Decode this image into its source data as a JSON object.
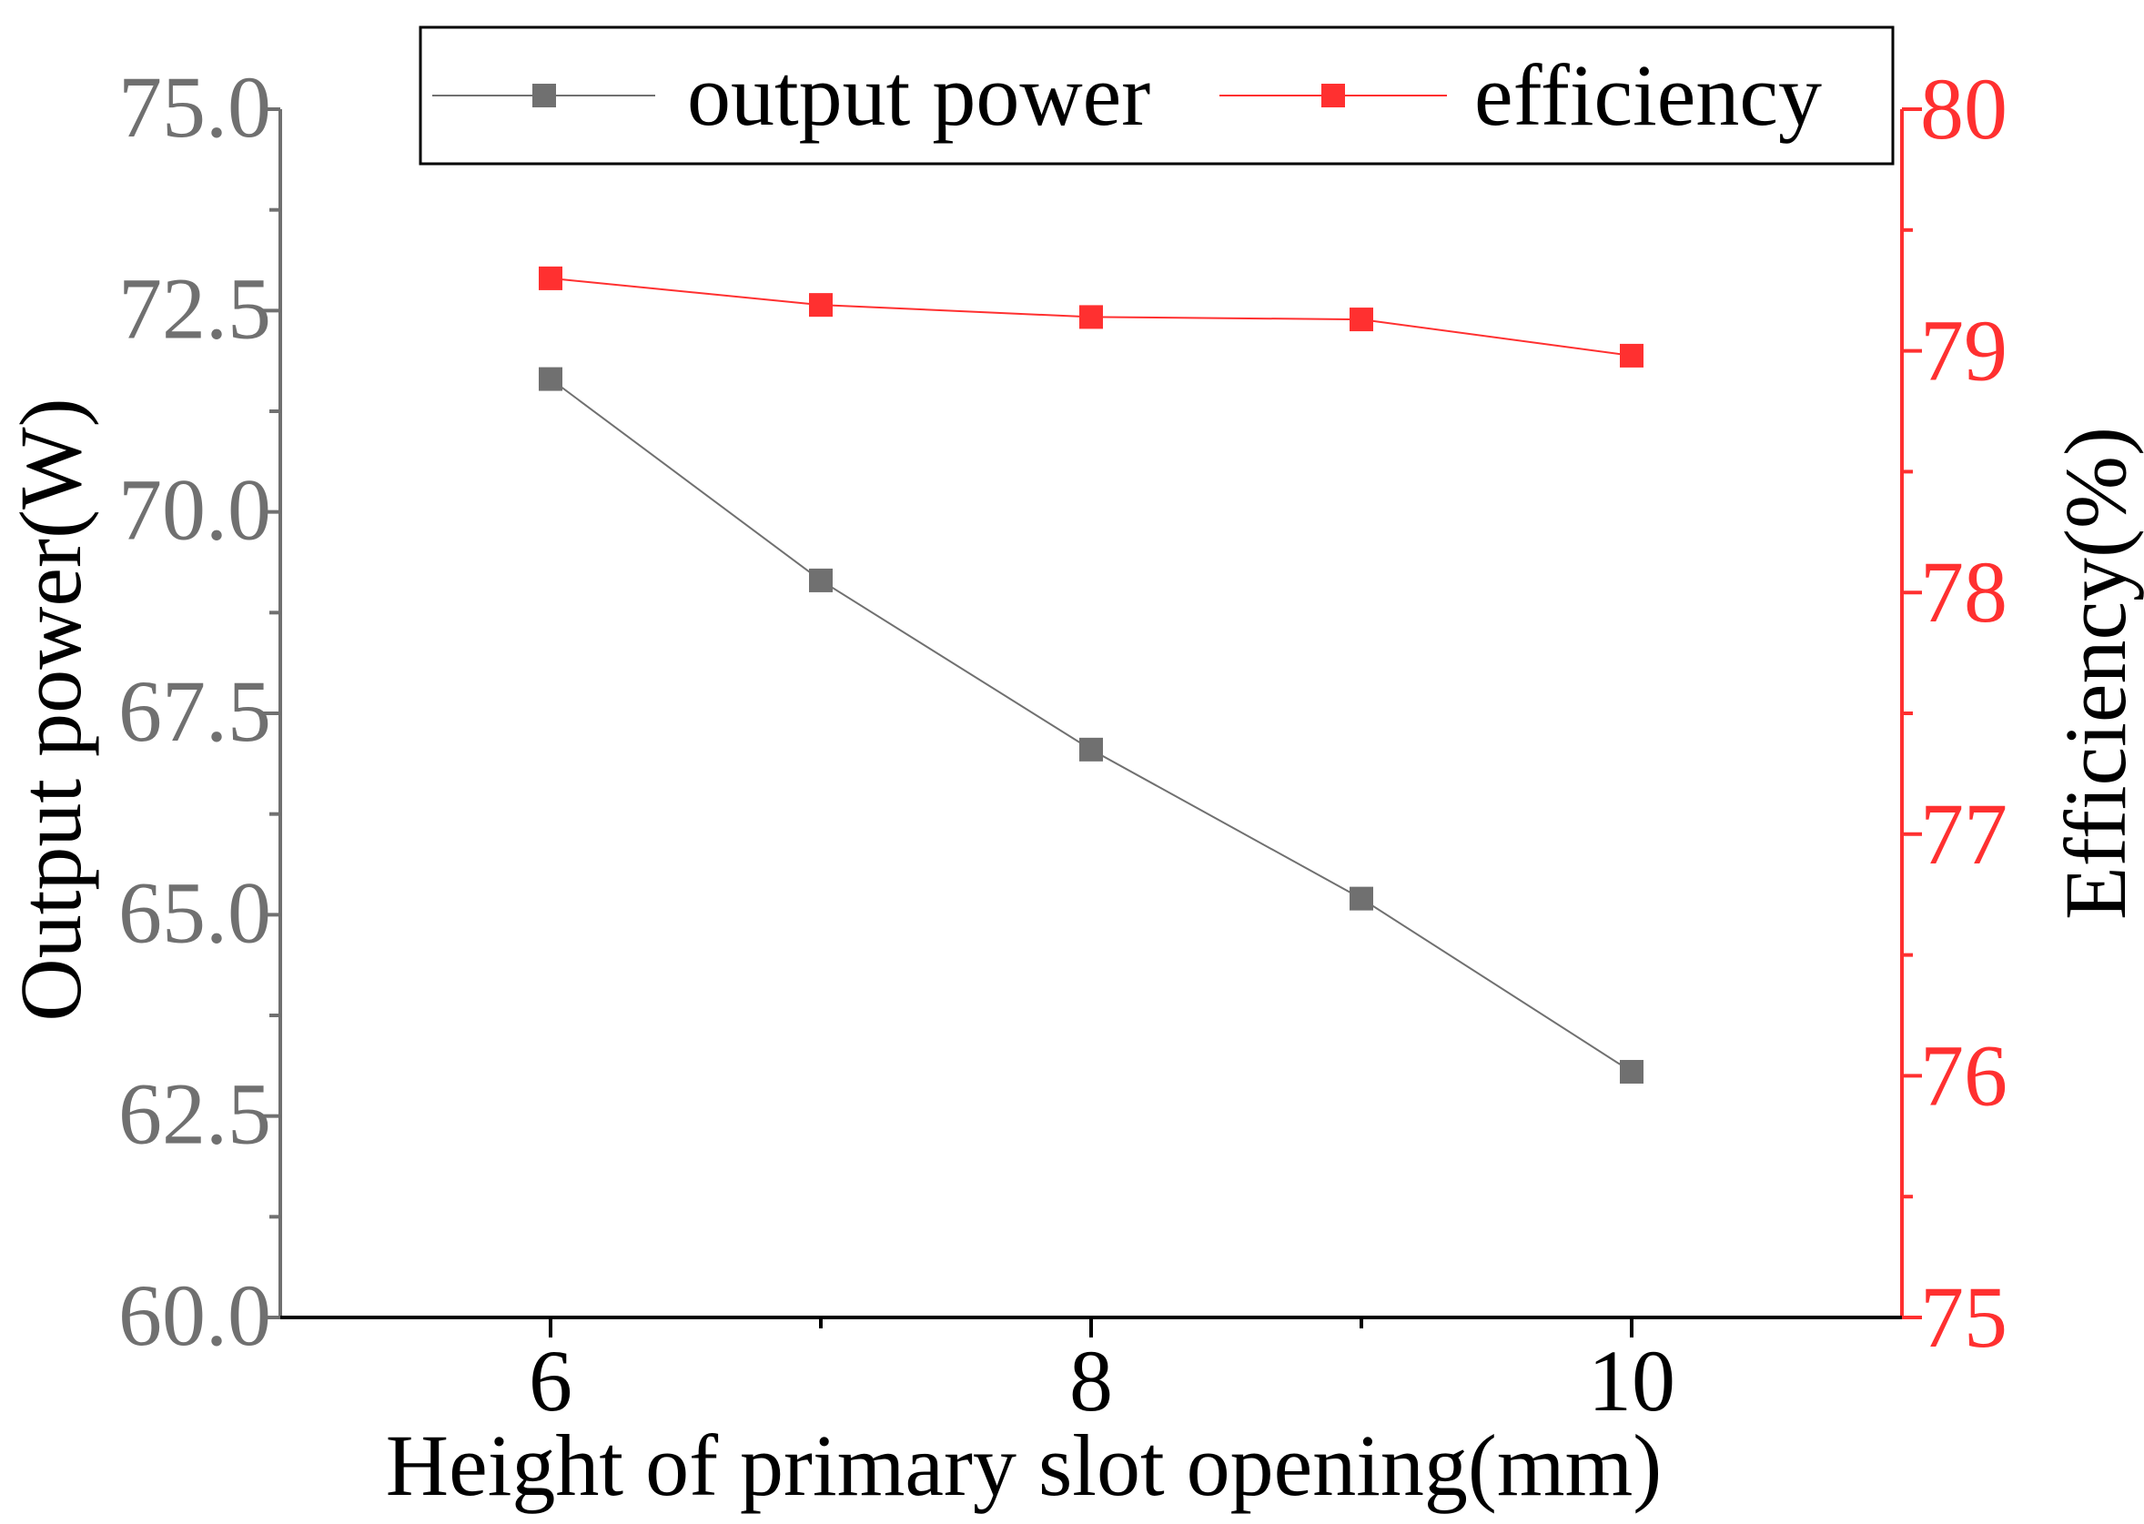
{
  "colors": {
    "output_power": "#707070",
    "efficiency": "#ff3030",
    "axis_left": "#707070",
    "axis_right": "#ff3030",
    "axis_bottom": "#000000"
  },
  "chart_data": {
    "type": "line",
    "xlabel": "Height of primary slot opening(mm)",
    "ylabel_left": "Output power(W)",
    "ylabel_right": "Efficiency(%)",
    "xlim": [
      5,
      11
    ],
    "ylim_left": [
      60,
      75
    ],
    "ylim_right": [
      75,
      80
    ],
    "x_ticks": [
      6,
      8,
      10
    ],
    "x_tick_labels": [
      "6",
      "8",
      "10"
    ],
    "y_left_ticks": [
      60,
      62.5,
      65,
      67.5,
      70,
      72.5,
      75
    ],
    "y_left_tick_labels": [
      "60.0",
      "62.5",
      "65.0",
      "67.5",
      "70.0",
      "72.5",
      "75.0"
    ],
    "y_right_ticks": [
      75,
      76,
      77,
      78,
      79,
      80
    ],
    "y_right_tick_labels": [
      "75",
      "76",
      "77",
      "78",
      "79",
      "80"
    ],
    "x": [
      6,
      7,
      8,
      9,
      10
    ],
    "series": [
      {
        "name": "output power",
        "axis": "left",
        "values": [
          71.65,
          69.15,
          67.05,
          65.2,
          63.05
        ]
      },
      {
        "name": "efficiency",
        "axis": "right",
        "values": [
          79.3,
          79.19,
          79.14,
          79.13,
          78.98
        ]
      }
    ],
    "legend": {
      "position": "top",
      "entries": [
        "output power",
        "efficiency"
      ]
    }
  }
}
